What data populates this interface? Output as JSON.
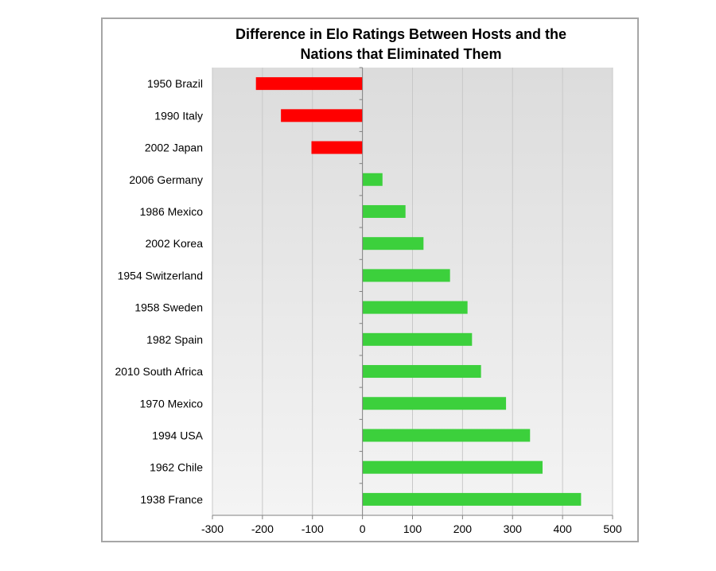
{
  "chart_data": {
    "type": "bar",
    "orientation": "horizontal",
    "title": "Difference in Elo Ratings Between Hosts and the Nations that Eliminated Them",
    "title_lines": [
      "Difference in Elo Ratings Between Hosts and the",
      "Nations that Eliminated Them"
    ],
    "xlabel": "",
    "ylabel": "",
    "categories": [
      "1950 Brazil",
      "1990 Italy",
      "2002 Japan",
      "2006 Germany",
      "1986 Mexico",
      "2002 Korea",
      "1954 Switzerland",
      "1958 Sweden",
      "1982 Spain",
      "2010 South Africa",
      "1970 Mexico",
      "1994 USA",
      "1962 Chile",
      "1938 France"
    ],
    "values": [
      -213,
      -163,
      -102,
      40,
      86,
      122,
      175,
      210,
      219,
      237,
      287,
      335,
      360,
      437
    ],
    "xlim": [
      -300,
      500
    ],
    "xticks": [
      "-300",
      "-200",
      "-100",
      "0",
      "100",
      "200",
      "300",
      "400",
      "500"
    ],
    "grid": "vertical",
    "legend": "none",
    "colors": {
      "negative": "#ff0000",
      "positive": "#3cd03c",
      "grid": "#c8c8c8",
      "axis": "#808080",
      "plot_bg_top": "#dcdcdc",
      "plot_bg_bottom": "#f4f4f4",
      "frame": "#a6a6a6"
    }
  }
}
